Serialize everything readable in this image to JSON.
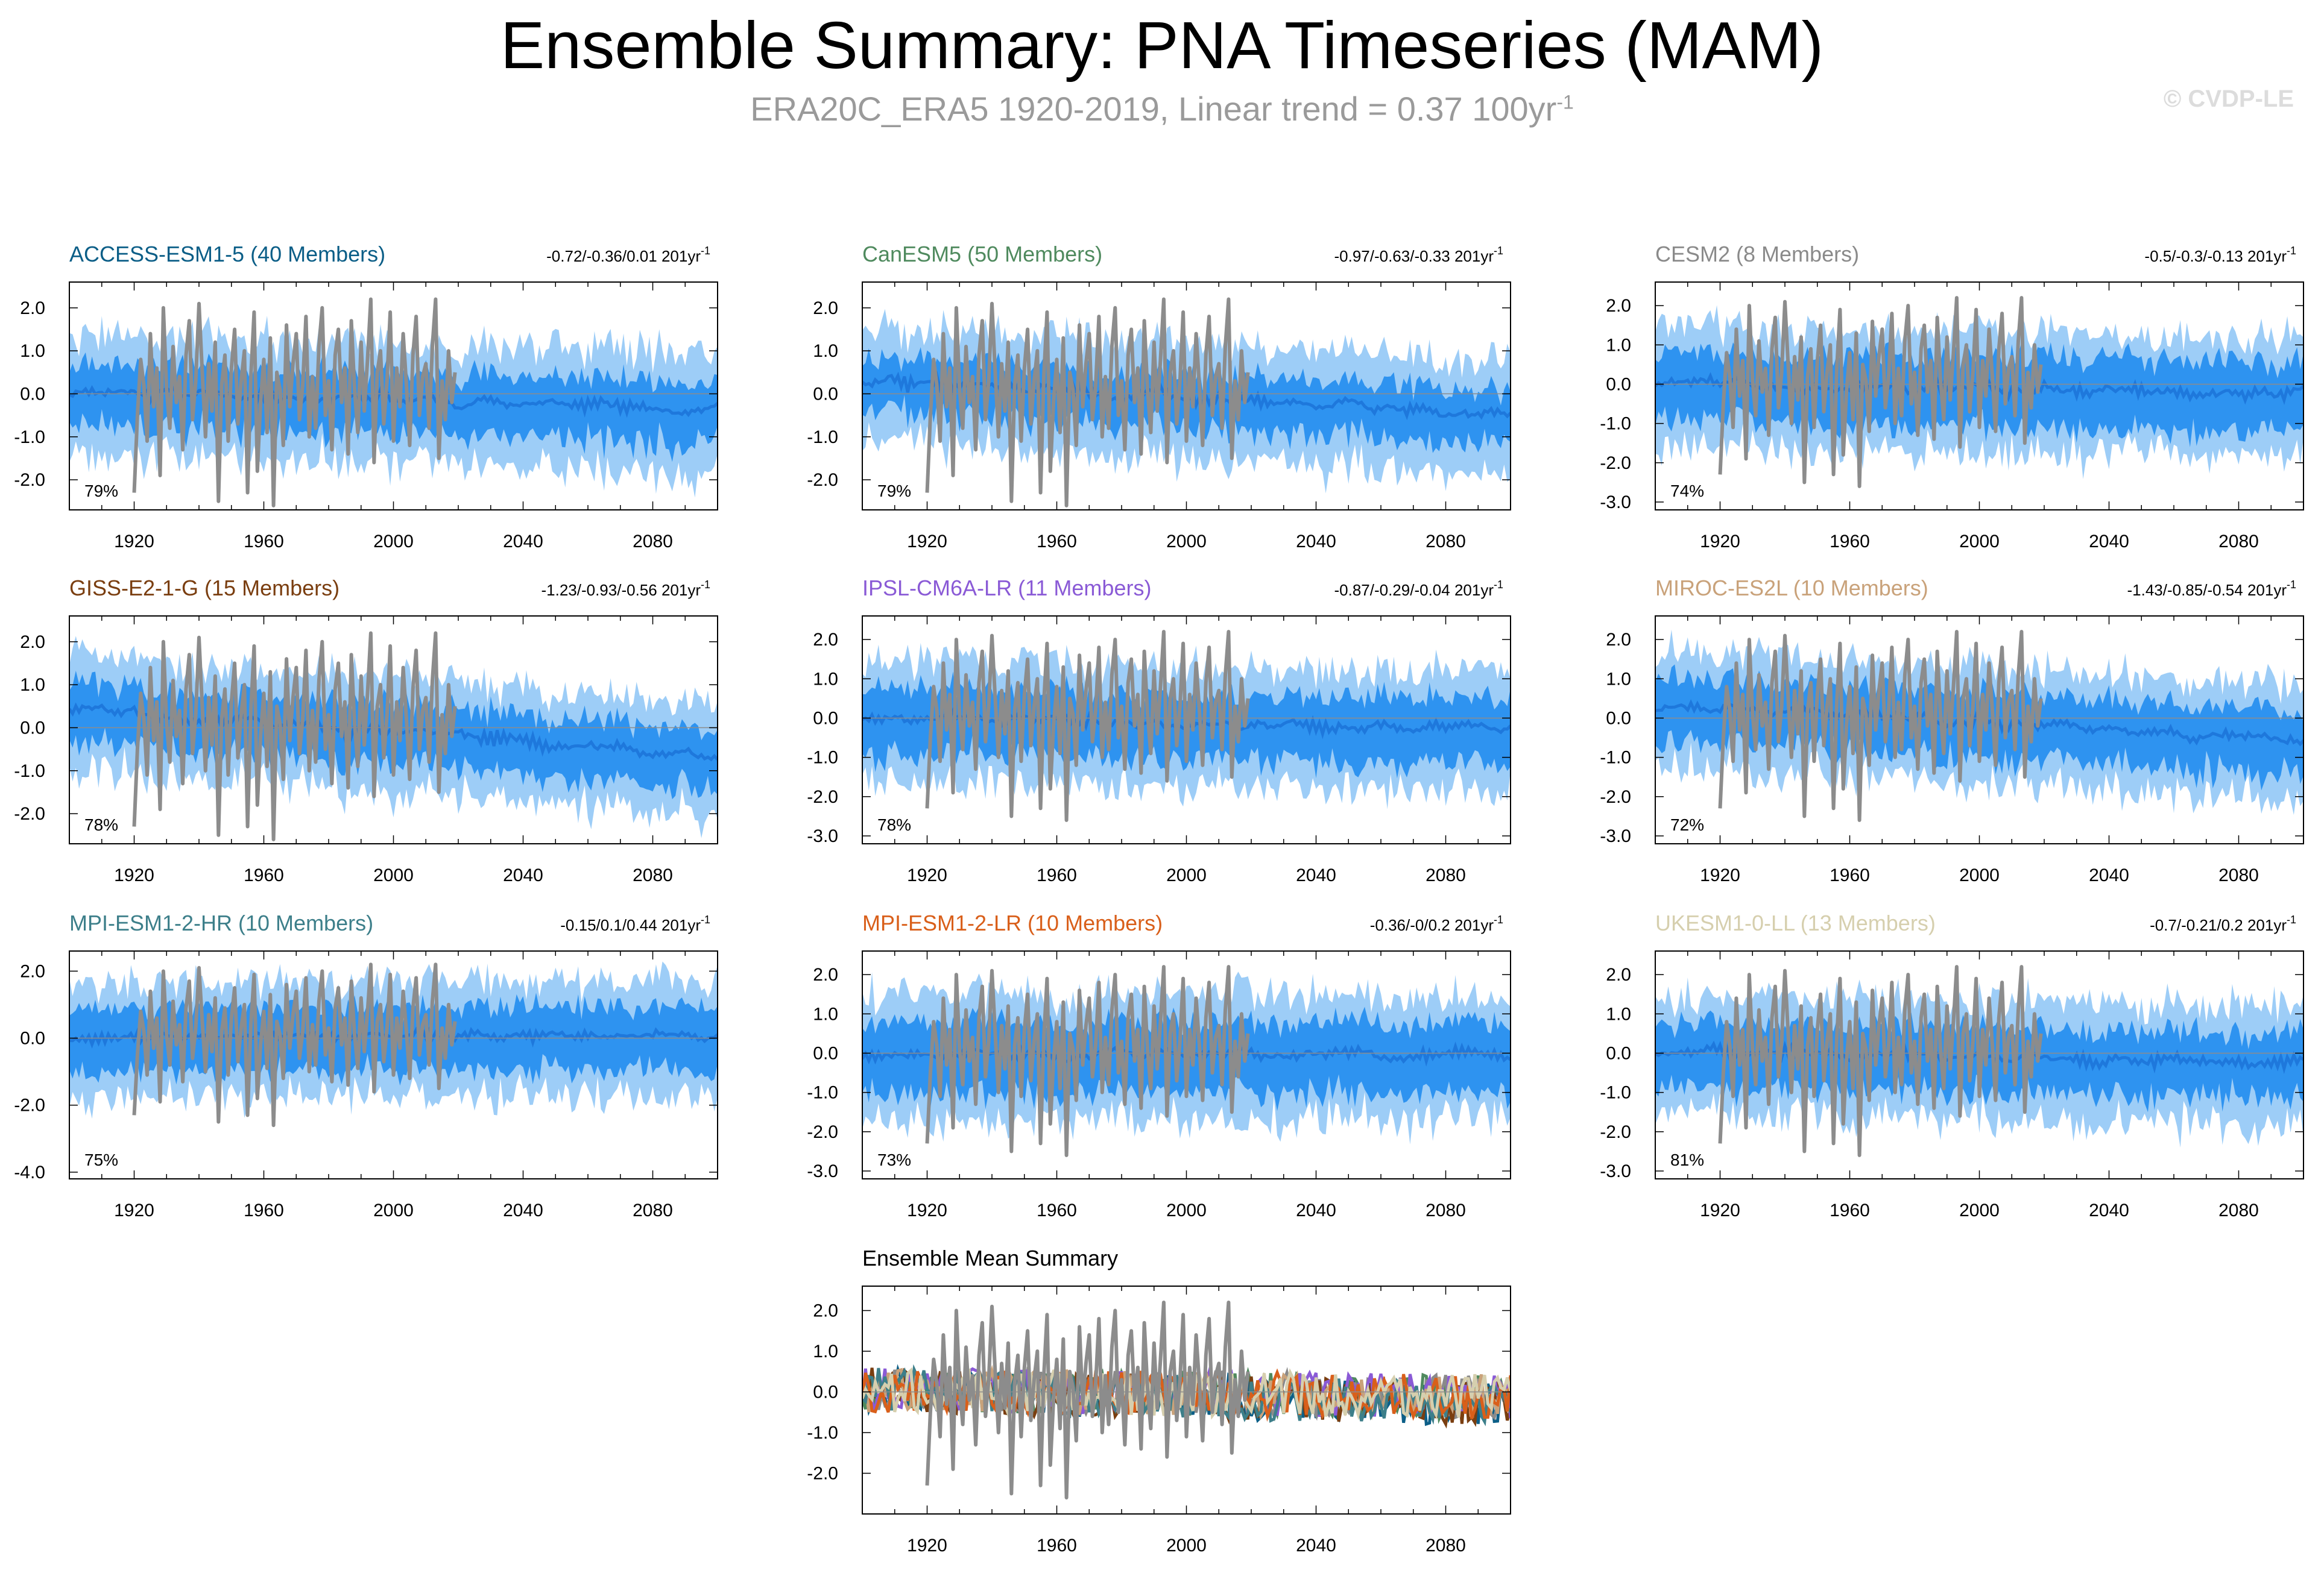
{
  "figure": {
    "title": "Ensemble Summary: PNA Timeseries (MAM)",
    "subtitle_main": "ERA20C_ERA5 1920-2019, Linear trend = 0.37 100yr",
    "subtitle_sup": "-1",
    "watermark": "© CVDP-LE"
  },
  "colors": {
    "band_outer": "#9dcdf7",
    "band_inner": "#2e93f0",
    "mean_line": "#1e78dc",
    "obs_line": "#8c8c8c",
    "zero_line": "#8c8c8c"
  },
  "chart_data": [
    {
      "type": "area",
      "title": "ACCESS-ESM1-5 (40 Members)",
      "title_color": "#0b5e87",
      "trend": "-0.72/-0.36/0.01 201yr",
      "trend_sup": "-1",
      "percent": "79%",
      "x_range": [
        1900,
        2100
      ],
      "xticks": [
        1920,
        1960,
        2000,
        2040,
        2080
      ],
      "ylim": [
        -2.7,
        2.6
      ],
      "yticks": [
        2.0,
        1.0,
        0.0,
        -1.0,
        -2.0
      ],
      "ytick_labels": [
        "2.0",
        "1.0",
        "0.0",
        "-1.0",
        "-2.0"
      ],
      "ensemble_mean_trend": [
        0.1,
        -0.35
      ],
      "inner_halfwidth": 0.62,
      "outer_halfwidth": 1.3,
      "seed": 11
    },
    {
      "type": "area",
      "title": "CanESM5 (50 Members)",
      "title_color": "#4f8a5e",
      "trend": "-0.97/-0.63/-0.33 201yr",
      "trend_sup": "-1",
      "percent": "79%",
      "x_range": [
        1900,
        2100
      ],
      "xticks": [
        1920,
        1960,
        2000,
        2040,
        2080
      ],
      "ylim": [
        -2.7,
        2.6
      ],
      "yticks": [
        2.0,
        1.0,
        0.0,
        -1.0,
        -2.0
      ],
      "ytick_labels": [
        "2.0",
        "1.0",
        "0.0",
        "-1.0",
        "-2.0"
      ],
      "ensemble_mean_trend": [
        0.3,
        -0.45
      ],
      "inner_halfwidth": 0.55,
      "outer_halfwidth": 1.25,
      "seed": 22
    },
    {
      "type": "area",
      "title": "CESM2 (8 Members)",
      "title_color": "#8a8a8a",
      "trend": "-0.5/-0.3/-0.13 201yr",
      "trend_sup": "-1",
      "percent": "74%",
      "x_range": [
        1900,
        2100
      ],
      "xticks": [
        1920,
        1960,
        2000,
        2040,
        2080
      ],
      "ylim": [
        -3.2,
        2.6
      ],
      "yticks": [
        2.0,
        1.0,
        0.0,
        -1.0,
        -2.0,
        -3.0
      ],
      "ytick_labels": [
        "2.0",
        "1.0",
        "0.0",
        "-1.0",
        "-2.0",
        "-3.0"
      ],
      "ensemble_mean_trend": [
        0.05,
        -0.25
      ],
      "inner_halfwidth": 0.8,
      "outer_halfwidth": 1.45,
      "seed": 33
    },
    {
      "type": "area",
      "title": "GISS-E2-1-G (15 Members)",
      "title_color": "#7a3e10",
      "trend": "-1.23/-0.93/-0.56 201yr",
      "trend_sup": "-1",
      "percent": "78%",
      "x_range": [
        1900,
        2100
      ],
      "xticks": [
        1920,
        1960,
        2000,
        2040,
        2080
      ],
      "ylim": [
        -2.7,
        2.6
      ],
      "yticks": [
        2.0,
        1.0,
        0.0,
        -1.0,
        -2.0
      ],
      "ytick_labels": [
        "2.0",
        "1.0",
        "0.0",
        "-1.0",
        "-2.0"
      ],
      "ensemble_mean_trend": [
        0.45,
        -0.65
      ],
      "inner_halfwidth": 0.6,
      "outer_halfwidth": 1.25,
      "seed": 44
    },
    {
      "type": "area",
      "title": "IPSL-CM6A-LR (11 Members)",
      "title_color": "#8a5ad6",
      "trend": "-0.87/-0.29/-0.04 201yr",
      "trend_sup": "-1",
      "percent": "78%",
      "x_range": [
        1900,
        2100
      ],
      "xticks": [
        1920,
        1960,
        2000,
        2040,
        2080
      ],
      "ylim": [
        -3.2,
        2.6
      ],
      "yticks": [
        2.0,
        1.0,
        0.0,
        -1.0,
        -2.0,
        -3.0
      ],
      "ytick_labels": [
        "2.0",
        "1.0",
        "0.0",
        "-1.0",
        "-2.0",
        "-3.0"
      ],
      "ensemble_mean_trend": [
        0.05,
        -0.3
      ],
      "inner_halfwidth": 0.75,
      "outer_halfwidth": 1.45,
      "seed": 55
    },
    {
      "type": "area",
      "title": "MIROC-ES2L (10 Members)",
      "title_color": "#c9a27a",
      "trend": "-1.43/-0.85/-0.54 201yr",
      "trend_sup": "-1",
      "percent": "72%",
      "x_range": [
        1900,
        2100
      ],
      "xticks": [
        1920,
        1960,
        2000,
        2040,
        2080
      ],
      "ylim": [
        -3.2,
        2.6
      ],
      "yticks": [
        2.0,
        1.0,
        0.0,
        -1.0,
        -2.0,
        -3.0
      ],
      "ytick_labels": [
        "2.0",
        "1.0",
        "0.0",
        "-1.0",
        "-2.0",
        "-3.0"
      ],
      "ensemble_mean_trend": [
        0.35,
        -0.55
      ],
      "inner_halfwidth": 0.75,
      "outer_halfwidth": 1.4,
      "seed": 66
    },
    {
      "type": "area",
      "title": "MPI-ESM1-2-HR (10 Members)",
      "title_color": "#3d7f8a",
      "trend": "-0.15/0.1/0.44 201yr",
      "trend_sup": "-1",
      "percent": "75%",
      "x_range": [
        1900,
        2100
      ],
      "xticks": [
        1920,
        1960,
        2000,
        2040,
        2080
      ],
      "ylim": [
        -4.2,
        2.6
      ],
      "yticks": [
        2.0,
        0.0,
        -2.0,
        -4.0
      ],
      "ytick_labels": [
        "2.0",
        "0.0",
        "-2.0",
        "-4.0"
      ],
      "ensemble_mean_trend": [
        0.0,
        0.1
      ],
      "inner_halfwidth": 0.85,
      "outer_halfwidth": 1.6,
      "seed": 77
    },
    {
      "type": "area",
      "title": "MPI-ESM1-2-LR (10 Members)",
      "title_color": "#d95f1a",
      "trend": "-0.36/-0/0.2 201yr",
      "trend_sup": "-1",
      "percent": "73%",
      "x_range": [
        1900,
        2100
      ],
      "xticks": [
        1920,
        1960,
        2000,
        2040,
        2080
      ],
      "ylim": [
        -3.2,
        2.6
      ],
      "yticks": [
        2.0,
        1.0,
        0.0,
        -1.0,
        -2.0,
        -3.0
      ],
      "ytick_labels": [
        "2.0",
        "1.0",
        "0.0",
        "-1.0",
        "-2.0",
        "-3.0"
      ],
      "ensemble_mean_trend": [
        0.0,
        -0.05
      ],
      "inner_halfwidth": 0.8,
      "outer_halfwidth": 1.5,
      "seed": 88
    },
    {
      "type": "area",
      "title": "UKESM1-0-LL (13 Members)",
      "title_color": "#d6cfae",
      "trend": "-0.7/-0.21/0.2 201yr",
      "trend_sup": "-1",
      "percent": "81%",
      "x_range": [
        1900,
        2100
      ],
      "xticks": [
        1920,
        1960,
        2000,
        2040,
        2080
      ],
      "ylim": [
        -3.2,
        2.6
      ],
      "yticks": [
        2.0,
        1.0,
        0.0,
        -1.0,
        -2.0,
        -3.0
      ],
      "ytick_labels": [
        "2.0",
        "1.0",
        "0.0",
        "-1.0",
        "-2.0",
        "-3.0"
      ],
      "ensemble_mean_trend": [
        0.05,
        -0.25
      ],
      "inner_halfwidth": 0.75,
      "outer_halfwidth": 1.45,
      "seed": 99
    },
    {
      "type": "line",
      "title": "Ensemble Mean Summary",
      "title_color": "#000000",
      "x_range": [
        1900,
        2100
      ],
      "xticks": [
        1920,
        1960,
        2000,
        2040,
        2080
      ],
      "ylim": [
        -3.0,
        2.6
      ],
      "yticks": [
        2.0,
        1.0,
        0.0,
        -1.0,
        -2.0
      ],
      "ytick_labels": [
        "2.0",
        "1.0",
        "0.0",
        "-1.0",
        "-2.0"
      ],
      "series_colors": [
        "#0b5e87",
        "#4f8a5e",
        "#8a8a8a",
        "#7a3e10",
        "#8a5ad6",
        "#c9a27a",
        "#3d7f8a",
        "#d95f1a",
        "#d6cfae"
      ],
      "seed": 123
    }
  ],
  "observations": {
    "name": "ERA20C_ERA5",
    "years": [
      1920,
      2019
    ],
    "values": [
      -2.3,
      -0.5,
      0.8,
      0.2,
      -1.1,
      1.4,
      -0.3,
      0.6,
      -1.9,
      2.0,
      0.1,
      -0.8,
      1.1,
      -0.2,
      0.4,
      -1.3,
      0.9,
      1.7,
      -0.6,
      0.3,
      2.1,
      0.5,
      -1.0,
      0.7,
      -0.4,
      1.2,
      -2.5,
      0.2,
      0.9,
      -1.1,
      0.6,
      1.5,
      -0.7,
      0.3,
      1.0,
      -2.3,
      0.4,
      1.9,
      -1.8,
      -0.2,
      0.8,
      -0.9,
      1.3,
      -2.6,
      0.5,
      0.1,
      -1.2,
      1.6,
      -0.3,
      0.7,
      1.4,
      -0.6,
      0.2,
      1.8,
      -1.0,
      0.4,
      -0.8,
      1.1,
      2.0,
      -0.5,
      0.3,
      -1.3,
      0.9,
      1.5,
      -0.2,
      0.6,
      -1.4,
      1.7,
      0.1,
      -0.9,
      1.2,
      -0.4,
      0.8,
      2.2,
      -1.6,
      0.5,
      1.0,
      -0.7,
      0.3,
      1.9,
      -1.1,
      0.6,
      -0.3,
      1.4,
      0.2,
      -1.2,
      0.9,
      1.8,
      -0.5,
      0.4,
      0.7,
      -0.8,
      1.1,
      2.2,
      -1.5,
      0.3,
      -0.6,
      1.0,
      -0.2,
      0.5
    ]
  }
}
